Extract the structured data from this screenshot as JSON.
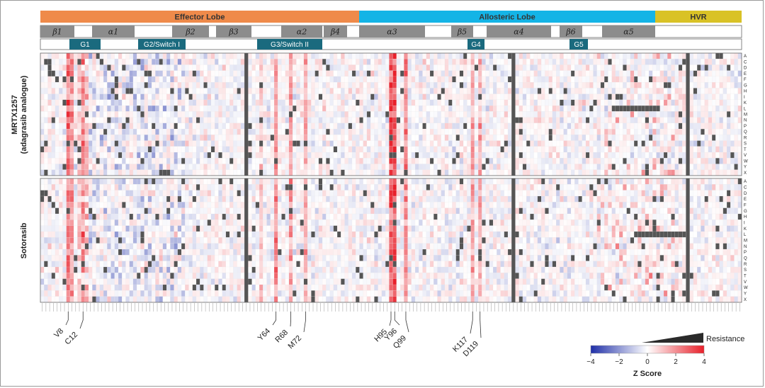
{
  "chart_data": {
    "type": "heatmap",
    "lobes": [
      {
        "label": "Effector Lobe",
        "color": "#ef8a4a"
      },
      {
        "label": "Allosteric Lobe",
        "color": "#14b4e6"
      },
      {
        "label": "HVR",
        "color": "#d9c226"
      }
    ],
    "secondary_structure": [
      "β1",
      "α1",
      "β2",
      "β3",
      "α2",
      "β4",
      "α3",
      "β5",
      "α4",
      "β6",
      "α5"
    ],
    "motifs": [
      "G1",
      "G2/Switch I",
      "G3/Switch II",
      "G4",
      "G5"
    ],
    "amino_acids": [
      "A",
      "C",
      "D",
      "E",
      "F",
      "G",
      "H",
      "I",
      "K",
      "L",
      "M",
      "N",
      "P",
      "Q",
      "R",
      "S",
      "T",
      "V",
      "W",
      "Y",
      "X"
    ],
    "panels": [
      {
        "label": "MRTX1257\n(adagrasib analogue)"
      },
      {
        "label": "Sotorasib"
      }
    ],
    "highlighted_residues": [
      "V8",
      "C12",
      "Y64",
      "R68",
      "M72",
      "H95",
      "Y96",
      "Q99",
      "K117",
      "D119"
    ],
    "resistance_label": "Resistance",
    "colorbar": {
      "title": "Z Score",
      "ticks": [
        "−4",
        "−2",
        "0",
        "2",
        "4"
      ],
      "min": -4,
      "max": 4,
      "low_color": "#1f2fa8",
      "mid_color": "#ffffff",
      "high_color": "#e8202a"
    },
    "grey_color": "#555555"
  }
}
